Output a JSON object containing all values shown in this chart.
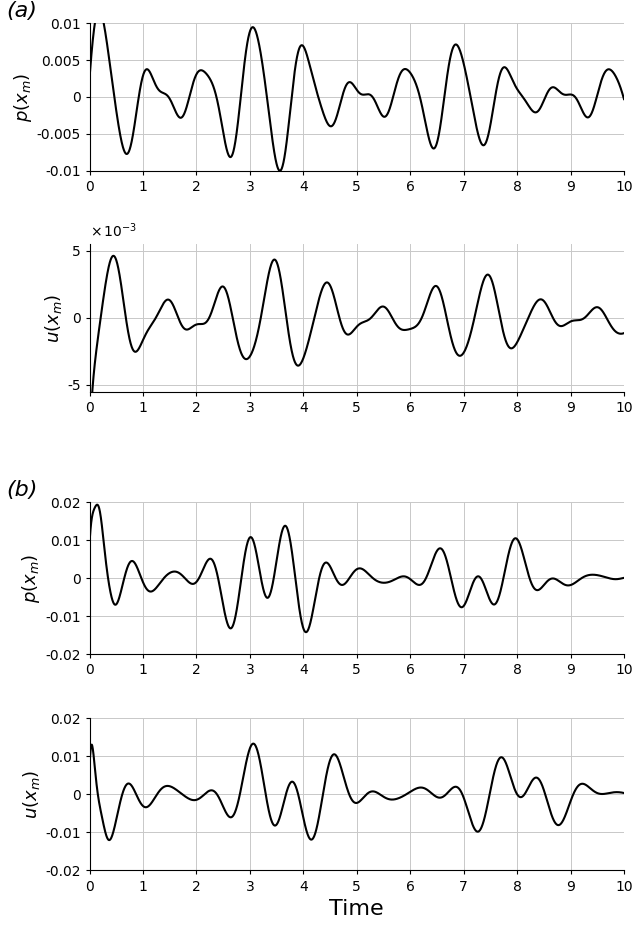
{
  "panel_a_p_ylim": [
    -0.01,
    0.01
  ],
  "panel_a_p_yticks": [
    -0.01,
    -0.005,
    0,
    0.005,
    0.01
  ],
  "panel_a_p_ytick_labels": [
    "-0.01",
    "-0.005",
    "0",
    "0.005",
    "0.01"
  ],
  "panel_a_u_ylim": [
    -0.0055,
    0.0055
  ],
  "panel_a_u_yticks": [
    -0.005,
    0,
    0.005
  ],
  "panel_a_u_ytick_labels": [
    "-5",
    "0",
    "5"
  ],
  "panel_b_p_ylim": [
    -0.02,
    0.02
  ],
  "panel_b_p_yticks": [
    -0.02,
    -0.01,
    0,
    0.01,
    0.02
  ],
  "panel_b_p_ytick_labels": [
    "-0.02",
    "-0.01",
    "0",
    "0.01",
    "0.02"
  ],
  "panel_b_u_ylim": [
    -0.02,
    0.02
  ],
  "panel_b_u_yticks": [
    -0.02,
    -0.01,
    0,
    0.01,
    0.02
  ],
  "panel_b_u_ytick_labels": [
    "-0.02",
    "-0.01",
    "0",
    "0.01",
    "0.02"
  ],
  "xlim": [
    0,
    10
  ],
  "xticks": [
    0,
    1,
    2,
    3,
    4,
    5,
    6,
    7,
    8,
    9,
    10
  ],
  "xlabel": "Time",
  "ylabel_ap": "$p(x_m)$",
  "ylabel_au": "$u(x_m)$",
  "ylabel_bp": "$p(x_m)$",
  "ylabel_bu": "$u(x_m)$",
  "label_a": "(a)",
  "label_b": "(b)",
  "line_color": "#000000",
  "line_width": 1.5,
  "grid_color": "#c8c8c8",
  "bg_color": "#ffffff",
  "label_fontsize": 13,
  "tick_fontsize": 10
}
